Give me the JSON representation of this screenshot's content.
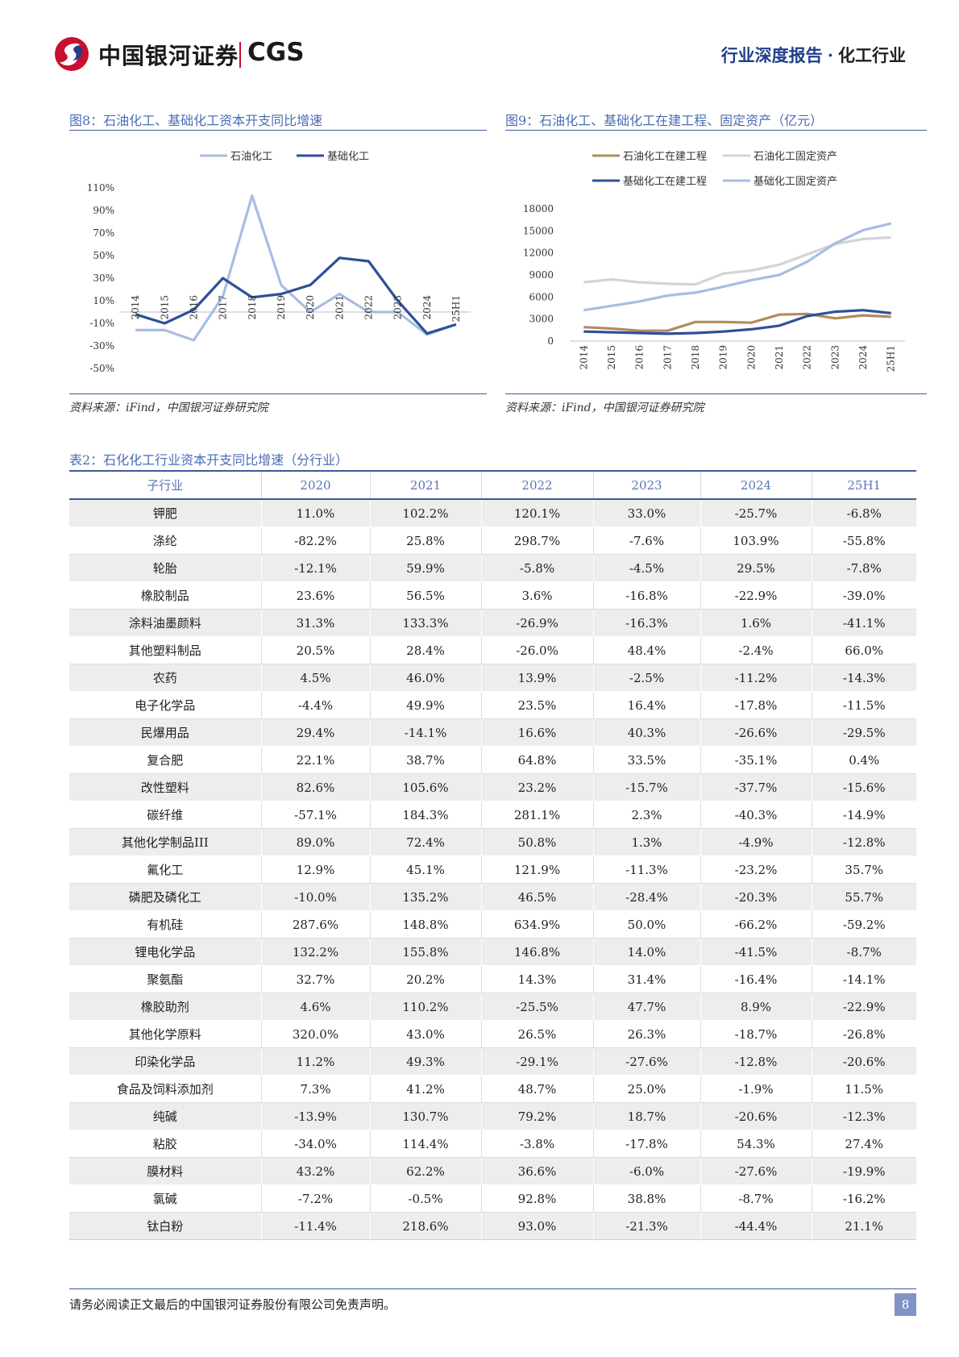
{
  "header": {
    "logo_cn": "中国银河证券",
    "logo_en": "CGS",
    "report_type": "行业深度报告",
    "separator": "·",
    "sector": "化工行业"
  },
  "figure8": {
    "title": "图8：石油化工、基础化工资本开支同比增速",
    "source": "资料来源：iFind，中国银河证券研究院"
  },
  "figure9": {
    "title": "图9：石油化工、基础化工在建工程、固定资产（亿元）",
    "source": "资料来源：iFind，中国银河证券研究院"
  },
  "chart_data": [
    {
      "type": "line",
      "categories": [
        "2014",
        "2015",
        "2016",
        "2017",
        "2018",
        "2019",
        "2020",
        "2021",
        "2022",
        "2023",
        "2024",
        "25H1"
      ],
      "ylim": [
        -50,
        110
      ],
      "yticks": [
        "110%",
        "90%",
        "70%",
        "50%",
        "30%",
        "10%",
        "-10%",
        "-30%",
        "-50%"
      ],
      "ytick_values": [
        110,
        90,
        70,
        50,
        30,
        10,
        -10,
        -30,
        -50
      ],
      "legend_position": "top",
      "series": [
        {
          "name": "石油化工",
          "color": "#a8bde2",
          "values": [
            -16,
            -16,
            -25,
            14,
            103,
            24,
            0,
            16,
            0,
            0,
            -20,
            -11
          ]
        },
        {
          "name": "基础化工",
          "color": "#2f4f9a",
          "values": [
            -2,
            -10,
            2,
            30,
            13,
            16,
            24,
            48,
            45,
            10,
            -19,
            -11
          ]
        }
      ]
    },
    {
      "type": "line",
      "categories": [
        "2014",
        "2015",
        "2016",
        "2017",
        "2018",
        "2019",
        "2020",
        "2021",
        "2022",
        "2023",
        "2024",
        "25H1"
      ],
      "ylim": [
        0,
        18000
      ],
      "yticks": [
        "18000",
        "15000",
        "12000",
        "9000",
        "6000",
        "3000",
        "0"
      ],
      "ytick_values": [
        18000,
        15000,
        12000,
        9000,
        6000,
        3000,
        0
      ],
      "legend_position": "top",
      "series": [
        {
          "name": "石油化工在建工程",
          "color": "#b08c5e",
          "values": [
            1900,
            1700,
            1400,
            1400,
            2600,
            2600,
            2500,
            3600,
            3700,
            3100,
            3500,
            3300
          ]
        },
        {
          "name": "石油化工固定资产",
          "color": "#d4d4d4",
          "values": [
            8000,
            8400,
            8000,
            7800,
            7700,
            9200,
            9600,
            10400,
            11800,
            13200,
            13900,
            14100
          ]
        },
        {
          "name": "基础化工在建工程",
          "color": "#2f4f9a",
          "values": [
            1300,
            1200,
            1100,
            1000,
            1100,
            1300,
            1600,
            2100,
            3400,
            4000,
            4200,
            3800
          ]
        },
        {
          "name": "基础化工固定资产",
          "color": "#a8bde2",
          "values": [
            4200,
            4800,
            5400,
            6200,
            6600,
            7400,
            8300,
            9000,
            10800,
            13300,
            15100,
            16000
          ]
        }
      ]
    }
  ],
  "table": {
    "title": "表2：石化化工行业资本开支同比增速（分行业）",
    "headers": [
      "子行业",
      "2020",
      "2021",
      "2022",
      "2023",
      "2024",
      "25H1"
    ],
    "rows": [
      [
        "钾肥",
        "11.0%",
        "102.2%",
        "120.1%",
        "33.0%",
        "-25.7%",
        "-6.8%"
      ],
      [
        "涤纶",
        "-82.2%",
        "25.8%",
        "298.7%",
        "-7.6%",
        "103.9%",
        "-55.8%"
      ],
      [
        "轮胎",
        "-12.1%",
        "59.9%",
        "-5.8%",
        "-4.5%",
        "29.5%",
        "-7.8%"
      ],
      [
        "橡胶制品",
        "23.6%",
        "56.5%",
        "3.6%",
        "-16.8%",
        "-22.9%",
        "-39.0%"
      ],
      [
        "涂料油墨颜料",
        "31.3%",
        "133.3%",
        "-26.9%",
        "-16.3%",
        "1.6%",
        "-41.1%"
      ],
      [
        "其他塑料制品",
        "20.5%",
        "28.4%",
        "-26.0%",
        "48.4%",
        "-2.4%",
        "66.0%"
      ],
      [
        "农药",
        "4.5%",
        "46.0%",
        "13.9%",
        "-2.5%",
        "-11.2%",
        "-14.3%"
      ],
      [
        "电子化学品",
        "-4.4%",
        "49.9%",
        "23.5%",
        "16.4%",
        "-17.8%",
        "-11.5%"
      ],
      [
        "民爆用品",
        "29.4%",
        "-14.1%",
        "16.6%",
        "40.3%",
        "-26.6%",
        "-29.5%"
      ],
      [
        "复合肥",
        "22.1%",
        "38.7%",
        "64.8%",
        "33.5%",
        "-35.1%",
        "0.4%"
      ],
      [
        "改性塑料",
        "82.6%",
        "105.6%",
        "23.2%",
        "-15.7%",
        "-37.7%",
        "-15.6%"
      ],
      [
        "碳纤维",
        "-57.1%",
        "184.3%",
        "281.1%",
        "2.3%",
        "-40.3%",
        "-14.9%"
      ],
      [
        "其他化学制品III",
        "89.0%",
        "72.4%",
        "50.8%",
        "1.3%",
        "-4.9%",
        "-12.8%"
      ],
      [
        "氟化工",
        "12.9%",
        "45.1%",
        "121.9%",
        "-11.3%",
        "-23.2%",
        "35.7%"
      ],
      [
        "磷肥及磷化工",
        "-10.0%",
        "135.2%",
        "46.5%",
        "-28.4%",
        "-20.3%",
        "55.7%"
      ],
      [
        "有机硅",
        "287.6%",
        "148.8%",
        "634.9%",
        "50.0%",
        "-66.2%",
        "-59.2%"
      ],
      [
        "锂电化学品",
        "132.2%",
        "155.8%",
        "146.8%",
        "14.0%",
        "-41.5%",
        "-8.7%"
      ],
      [
        "聚氨酯",
        "32.7%",
        "20.2%",
        "14.3%",
        "31.4%",
        "-16.4%",
        "-14.1%"
      ],
      [
        "橡胶助剂",
        "4.6%",
        "110.2%",
        "-25.5%",
        "47.7%",
        "8.9%",
        "-22.9%"
      ],
      [
        "其他化学原料",
        "320.0%",
        "43.0%",
        "26.5%",
        "26.3%",
        "-18.7%",
        "-26.8%"
      ],
      [
        "印染化学品",
        "11.2%",
        "49.3%",
        "-29.1%",
        "-27.6%",
        "-12.8%",
        "-20.6%"
      ],
      [
        "食品及饲料添加剂",
        "7.3%",
        "41.2%",
        "48.7%",
        "25.0%",
        "-1.9%",
        "11.5%"
      ],
      [
        "纯碱",
        "-13.9%",
        "130.7%",
        "79.2%",
        "18.7%",
        "-20.6%",
        "-12.3%"
      ],
      [
        "粘胶",
        "-34.0%",
        "114.4%",
        "-3.8%",
        "-17.8%",
        "54.3%",
        "27.4%"
      ],
      [
        "膜材料",
        "43.2%",
        "62.2%",
        "36.6%",
        "-6.0%",
        "-27.6%",
        "-19.9%"
      ],
      [
        "氯碱",
        "-7.2%",
        "-0.5%",
        "92.8%",
        "38.8%",
        "-8.7%",
        "-16.2%"
      ],
      [
        "钛白粉",
        "-11.4%",
        "218.6%",
        "93.0%",
        "-21.3%",
        "-44.4%",
        "21.1%"
      ]
    ]
  },
  "footer": {
    "disclaimer": "请务必阅读正文最后的中国银河证券股份有限公司免责声明。",
    "page_number": "8"
  }
}
